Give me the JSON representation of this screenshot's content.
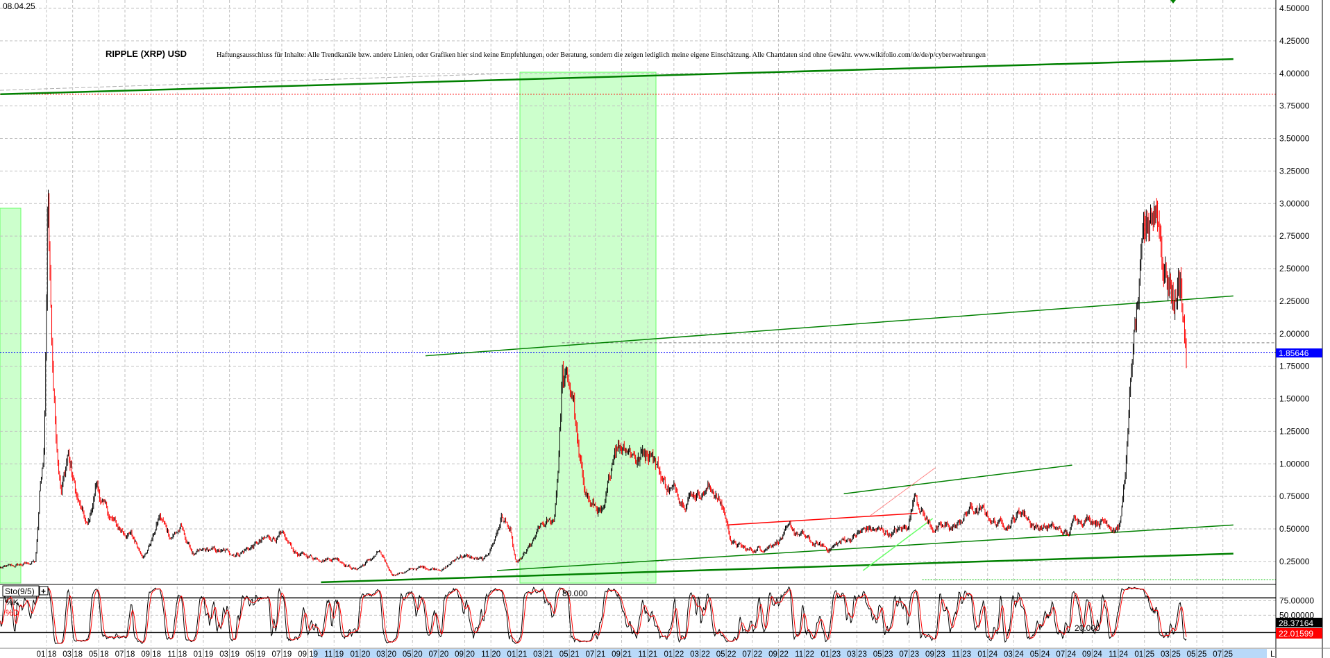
{
  "header": {
    "date": "08.04.25",
    "title": "RIPPLE (XRP) USD",
    "disclaimer": "Haftungsausschluss für Inhalte: Alle Trendkanäle bzw. andere Linien, oder Grafiken hier sind keine Empfehlungen, oder Beratung, sondern die zeigen lediglich meine eigene Einschätzung. Alle Chartdaten sind ohne Gewähr.  www.wikifolio.com/de/de/p/cyberwaehrungen"
  },
  "colors": {
    "trendline": "#008000",
    "zone_fill": "#ccffcc",
    "zone_border": "#66ff66",
    "resistance": "#ff0000",
    "current_price": "#0000ff",
    "bar_up": "#000000",
    "bar_down": "#ff0000",
    "k_line": "#000000",
    "d_line": "#ff0000",
    "date_axis_highlight": "#b9d9f9"
  },
  "chart_data": [
    {
      "type": "line",
      "style": "ohlc-bars",
      "title": "RIPPLE (XRP) USD",
      "ylim": [
        0.08,
        4.55
      ],
      "y_ticks": [
        "4.50000",
        "4.25000",
        "4.00000",
        "3.75000",
        "3.50000",
        "3.25000",
        "3.00000",
        "2.75000",
        "2.50000",
        "2.25000",
        "2.00000",
        "1.75000",
        "1.50000",
        "1.25000",
        "1.00000",
        "0.75000",
        "0.50000",
        "0.25000"
      ],
      "x_ticks": [
        "01 18",
        "03 18",
        "05 18",
        "07 18",
        "09 18",
        "11 18",
        "01 19",
        "03 19",
        "05 19",
        "07 19",
        "09 19",
        "11 19",
        "01 20",
        "03 20",
        "05 20",
        "07 20",
        "09 20",
        "11 20",
        "01 21",
        "03 21",
        "05 21",
        "07 21",
        "09 21",
        "11 21",
        "01 22",
        "03 22",
        "05 22",
        "07 22",
        "09 22",
        "11 22",
        "01 23",
        "03 23",
        "05 23",
        "07 23",
        "09 23",
        "11 23",
        "01 24",
        "03 24",
        "05 24",
        "07 24",
        "09 24",
        "11 24",
        "01 25",
        "03 25",
        "05 25",
        "07 25"
      ],
      "axis_end_label": "L",
      "grid": true,
      "current_price": "1.85646",
      "x": [
        "2017-09-15",
        "2017-10-15",
        "2017-11-15",
        "2017-12-05",
        "2017-12-15",
        "2017-12-25",
        "2018-01-04",
        "2018-01-10",
        "2018-01-20",
        "2018-02-05",
        "2018-02-20",
        "2018-03-10",
        "2018-04-05",
        "2018-04-25",
        "2018-05-15",
        "2018-06-15",
        "2018-07-15",
        "2018-08-15",
        "2018-09-20",
        "2018-10-15",
        "2018-11-10",
        "2018-12-10",
        "2019-01-15",
        "2019-03-15",
        "2019-05-15",
        "2019-06-25",
        "2019-08-10",
        "2019-09-20",
        "2019-11-10",
        "2019-12-20",
        "2020-02-15",
        "2020-03-15",
        "2020-05-15",
        "2020-07-15",
        "2020-08-20",
        "2020-10-15",
        "2020-11-25",
        "2020-12-15",
        "2020-12-30",
        "2021-01-30",
        "2021-02-25",
        "2021-03-25",
        "2021-04-14",
        "2021-05-10",
        "2021-05-25",
        "2021-06-20",
        "2021-07-20",
        "2021-08-15",
        "2021-09-10",
        "2021-10-10",
        "2021-11-10",
        "2021-12-10",
        "2022-01-20",
        "2022-02-15",
        "2022-03-30",
        "2022-04-25",
        "2022-05-15",
        "2022-06-20",
        "2022-07-20",
        "2022-09-25",
        "2022-10-25",
        "2022-11-20",
        "2022-12-25",
        "2023-01-25",
        "2023-03-25",
        "2023-05-15",
        "2023-06-25",
        "2023-07-15",
        "2023-08-20",
        "2023-09-20",
        "2023-10-20",
        "2023-11-20",
        "2023-12-20",
        "2024-01-20",
        "2024-02-20",
        "2024-03-20",
        "2024-04-20",
        "2024-05-20",
        "2024-07-05",
        "2024-07-25",
        "2024-09-15",
        "2024-10-25",
        "2024-11-05",
        "2024-11-20",
        "2024-12-03",
        "2024-12-20",
        "2025-01-15",
        "2025-02-01",
        "2025-02-15",
        "2025-03-05",
        "2025-03-25",
        "2025-04-08"
      ],
      "y": [
        0.2,
        0.21,
        0.23,
        0.25,
        0.75,
        1.1,
        3.3,
        2.3,
        1.5,
        0.8,
        1.1,
        0.75,
        0.5,
        0.85,
        0.65,
        0.5,
        0.45,
        0.3,
        0.6,
        0.45,
        0.5,
        0.3,
        0.33,
        0.31,
        0.4,
        0.45,
        0.3,
        0.28,
        0.28,
        0.19,
        0.32,
        0.15,
        0.2,
        0.2,
        0.3,
        0.25,
        0.6,
        0.5,
        0.22,
        0.35,
        0.5,
        0.55,
        1.7,
        1.5,
        0.95,
        0.7,
        0.6,
        1.15,
        1.2,
        1.05,
        1.15,
        0.85,
        0.75,
        0.8,
        0.82,
        0.65,
        0.4,
        0.33,
        0.35,
        0.48,
        0.45,
        0.38,
        0.35,
        0.4,
        0.5,
        0.47,
        0.5,
        0.8,
        0.52,
        0.5,
        0.52,
        0.65,
        0.62,
        0.55,
        0.55,
        0.65,
        0.52,
        0.52,
        0.45,
        0.6,
        0.58,
        0.53,
        0.55,
        1.1,
        1.8,
        2.3,
        2.9,
        3.0,
        2.6,
        2.3,
        2.4,
        1.86
      ],
      "trendlines": [
        {
          "color": "green",
          "from": [
            "2017-09-15",
            3.84
          ],
          "to": [
            "2025-07-25",
            4.11
          ]
        },
        {
          "color": "green",
          "from": [
            "2020-06-01",
            1.83
          ],
          "to": [
            "2025-07-25",
            2.29
          ]
        },
        {
          "color": "green",
          "from": [
            "2019-10-01",
            0.09
          ],
          "to": [
            "2025-07-25",
            0.31
          ]
        },
        {
          "color": "green",
          "from": [
            "2020-11-15",
            0.18
          ],
          "to": [
            "2025-07-25",
            0.53
          ]
        },
        {
          "color": "green",
          "from": [
            "2023-02-01",
            0.77
          ],
          "to": [
            "2024-07-15",
            0.99
          ]
        },
        {
          "color": "red",
          "from": [
            "2022-05-01",
            0.53
          ],
          "to": [
            "2023-07-20",
            0.62
          ]
        }
      ],
      "horizontal_levels": [
        {
          "value": 3.84,
          "color": "red",
          "style": "dotted"
        },
        {
          "value": 1.85646,
          "color": "blue",
          "style": "dotted"
        },
        {
          "value": 1.93,
          "color": "gray",
          "style": "dashed"
        },
        {
          "value": 0.11,
          "color": "green",
          "style": "dotted"
        }
      ]
    },
    {
      "type": "line",
      "title": "Sto(9/5)",
      "series": [
        {
          "name": "%K"
        },
        {
          "name": "%D"
        }
      ],
      "ylim": [
        0,
        100
      ],
      "levels": [
        "80.000",
        "20.000"
      ],
      "y_ticks": [
        "75.00000",
        "50.00000"
      ],
      "last_values": {
        "k": "28.37164",
        "d": "22.01599"
      }
    }
  ]
}
